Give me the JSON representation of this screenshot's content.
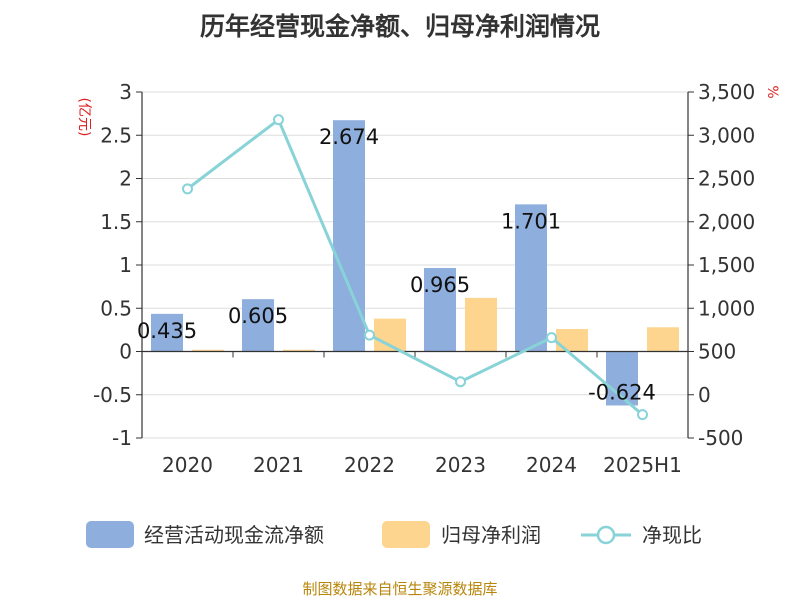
{
  "title": "历年经营现金净额、归母净利润情况",
  "source": "制图数据来自恒生聚源数据库",
  "colors": {
    "cash_flow": "#8eaedd",
    "net_profit": "#fdd58f",
    "ratio": "#88d3d8",
    "unit_label": "#dd2222",
    "source_text": "#b8860b"
  },
  "chart_data": {
    "type": "bar",
    "categories": [
      "2020",
      "2021",
      "2022",
      "2023",
      "2024",
      "2025H1"
    ],
    "left_axis": {
      "unit": "(亿元)",
      "ylim": [
        -1,
        3
      ],
      "ticks": [
        3,
        2.5,
        2,
        1.5,
        1,
        0.5,
        0,
        -0.5,
        -1
      ],
      "tick_labels": [
        "3",
        "2.5",
        "2",
        "1.5",
        "1",
        "0.5",
        "0",
        "-0.5",
        "-1"
      ]
    },
    "right_axis": {
      "unit": "%",
      "ylim": [
        -500,
        3500
      ],
      "ticks": [
        3500,
        3000,
        2500,
        2000,
        1500,
        1000,
        500,
        0,
        -500
      ],
      "tick_labels": [
        "3,500",
        "3,000",
        "2,500",
        "2,000",
        "1,500",
        "1,000",
        "500",
        "0",
        "-500"
      ]
    },
    "grid": true,
    "legend_position": "bottom",
    "series": [
      {
        "name": "经营活动现金流净额",
        "type": "bar",
        "axis": "left",
        "values": [
          0.435,
          0.605,
          2.674,
          0.965,
          1.701,
          -0.624
        ],
        "labels": [
          "0.435",
          "0.605",
          "2.674",
          "0.965",
          "1.701",
          "-0.624"
        ]
      },
      {
        "name": "归母净利润",
        "type": "bar",
        "axis": "left",
        "values": [
          0.02,
          0.02,
          0.38,
          0.62,
          0.26,
          0.28
        ]
      },
      {
        "name": "净现比",
        "type": "line",
        "axis": "right",
        "values": [
          2380,
          3180,
          690,
          150,
          660,
          -230
        ]
      }
    ]
  }
}
